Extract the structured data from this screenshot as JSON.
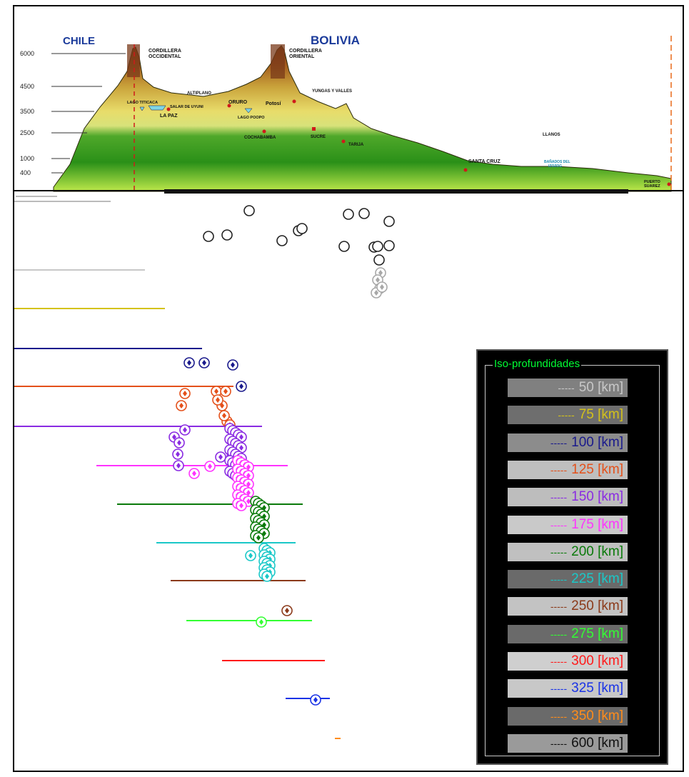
{
  "profile": {
    "country_left": "CHILE",
    "country_right": "BOLIVIA",
    "elevations": [
      "6000",
      "4500",
      "3500",
      "2500",
      "1000",
      "400"
    ],
    "labels": {
      "cordillera_occidental": [
        "CORDILLERA",
        "OCCIDENTAL"
      ],
      "cordillera_oriental": [
        "CORDILLERA",
        "ORIENTAL"
      ],
      "altiplano": "ALTIPLANO",
      "yungas": "YUNGAS Y VALLES",
      "oruro": "ORURO",
      "potosi": "Potosí",
      "lago_titicaca": "LAGO TITICACA",
      "salar": "SALAR DE UYUNI",
      "la_paz": "LA PAZ",
      "lago_poopo": "LAGO POOPO",
      "cochabamba": "COCHABAMBA",
      "sucre": "SUCRE",
      "tarija": "TARIJA",
      "santa_cruz": "SANTA CRUZ",
      "llanos": "LLANOS",
      "banados": [
        "BAÑADOS DEL",
        "IZOZOG"
      ],
      "puerto_suarez": [
        "PUERTO",
        "SUAREZ"
      ]
    },
    "colors": {
      "sky": "#ffffff",
      "peak": "#7a3a1a",
      "highland": "#e3d46a",
      "lowland": "#2f9a1c",
      "country_text": "#1a3a9a"
    }
  },
  "legend": {
    "title": "Iso-profundidades",
    "dash": "-----",
    "items": [
      {
        "label": "50 [km]",
        "color": "#c8c8c8",
        "bg": "#808080"
      },
      {
        "label": "75 [km]",
        "color": "#d4c21a",
        "bg": "#6e6e6e"
      },
      {
        "label": "100 [km]",
        "color": "#1a1a8c",
        "bg": "#8c8c8c"
      },
      {
        "label": "125 [km]",
        "color": "#e4501a",
        "bg": "#bfbfbf"
      },
      {
        "label": "150 [km]",
        "color": "#8a2be2",
        "bg": "#bdbdbd"
      },
      {
        "label": "175 [km]",
        "color": "#ff33ff",
        "bg": "#c9c9c9"
      },
      {
        "label": "200 [km]",
        "color": "#0a7a0a",
        "bg": "#c0c0c0"
      },
      {
        "label": "225 [km]",
        "color": "#1ac8c8",
        "bg": "#6a6a6a"
      },
      {
        "label": "250 [km]",
        "color": "#8b3a1a",
        "bg": "#c3c3c3"
      },
      {
        "label": "275 [km]",
        "color": "#33ff33",
        "bg": "#6a6a6a"
      },
      {
        "label": "300 [km]",
        "color": "#ff1a1a",
        "bg": "#cfcfcf"
      },
      {
        "label": "325 [km]",
        "color": "#1a33e6",
        "bg": "#c8c8c8"
      },
      {
        "label": "350 [km]",
        "color": "#ff8c1a",
        "bg": "#6a6a6a"
      },
      {
        "label": "600 [km]",
        "color": "#111111",
        "bg": "#9a9a9a"
      }
    ]
  }
}
